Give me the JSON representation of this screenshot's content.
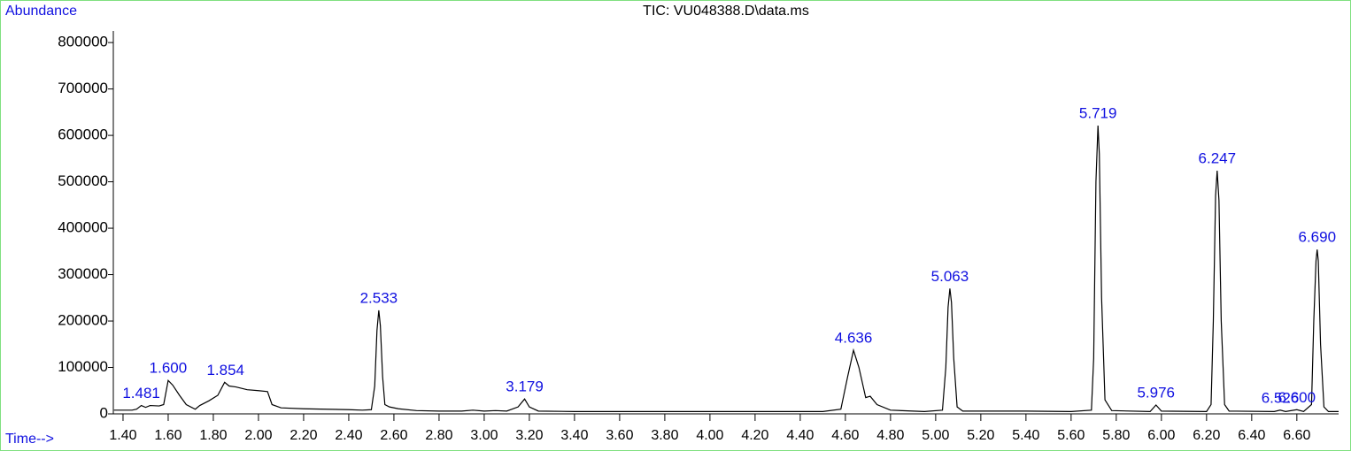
{
  "chart_data": {
    "type": "line",
    "title": "TIC: VU048388.D\\data.ms",
    "y_label": "Abundance",
    "x_label": "Time-->",
    "xlim": [
      1.357,
      6.785
    ],
    "ylim": [
      0,
      825000
    ],
    "xticks": [
      {
        "value": 1.4,
        "label": "1.40"
      },
      {
        "value": 1.6,
        "label": "1.60"
      },
      {
        "value": 1.8,
        "label": "1.80"
      },
      {
        "value": 2.0,
        "label": "2.00"
      },
      {
        "value": 2.2,
        "label": "2.20"
      },
      {
        "value": 2.4,
        "label": "2.40"
      },
      {
        "value": 2.6,
        "label": "2.60"
      },
      {
        "value": 2.8,
        "label": "2.80"
      },
      {
        "value": 3.0,
        "label": "3.00"
      },
      {
        "value": 3.2,
        "label": "3.20"
      },
      {
        "value": 3.4,
        "label": "3.40"
      },
      {
        "value": 3.6,
        "label": "3.60"
      },
      {
        "value": 3.8,
        "label": "3.80"
      },
      {
        "value": 4.0,
        "label": "4.00"
      },
      {
        "value": 4.2,
        "label": "4.20"
      },
      {
        "value": 4.4,
        "label": "4.40"
      },
      {
        "value": 4.6,
        "label": "4.60"
      },
      {
        "value": 4.8,
        "label": "4.80"
      },
      {
        "value": 5.0,
        "label": "5.00"
      },
      {
        "value": 5.2,
        "label": "5.20"
      },
      {
        "value": 5.4,
        "label": "5.40"
      },
      {
        "value": 5.6,
        "label": "5.60"
      },
      {
        "value": 5.8,
        "label": "5.80"
      },
      {
        "value": 6.0,
        "label": "6.00"
      },
      {
        "value": 6.2,
        "label": "6.20"
      },
      {
        "value": 6.4,
        "label": "6.40"
      },
      {
        "value": 6.6,
        "label": "6.60"
      }
    ],
    "yticks": [
      0,
      100000,
      200000,
      300000,
      400000,
      500000,
      600000,
      700000,
      800000
    ],
    "series": [
      {
        "color": "#000000",
        "x": [
          1.36,
          1.44,
          1.46,
          1.481,
          1.5,
          1.52,
          1.56,
          1.58,
          1.6,
          1.62,
          1.65,
          1.68,
          1.72,
          1.74,
          1.78,
          1.82,
          1.85,
          1.87,
          1.9,
          1.95,
          2.0,
          2.04,
          2.06,
          2.1,
          2.2,
          2.3,
          2.4,
          2.46,
          2.5,
          2.515,
          2.525,
          2.533,
          2.54,
          2.55,
          2.56,
          2.58,
          2.62,
          2.7,
          2.8,
          2.9,
          2.95,
          3.0,
          3.05,
          3.1,
          3.15,
          3.179,
          3.2,
          3.24,
          3.4,
          3.8,
          4.2,
          4.5,
          4.58,
          4.61,
          4.636,
          4.66,
          4.69,
          4.71,
          4.74,
          4.8,
          4.95,
          5.03,
          5.045,
          5.055,
          5.063,
          5.07,
          5.08,
          5.095,
          5.12,
          5.4,
          5.6,
          5.69,
          5.7,
          5.71,
          5.719,
          5.725,
          5.735,
          5.75,
          5.78,
          5.95,
          5.976,
          6.0,
          6.2,
          6.22,
          6.23,
          6.24,
          6.247,
          6.255,
          6.265,
          6.28,
          6.3,
          6.5,
          6.526,
          6.55,
          6.6,
          6.63,
          6.665,
          6.675,
          6.685,
          6.69,
          6.695,
          6.705,
          6.72,
          6.74,
          6.785
        ],
        "values": [
          8000,
          8000,
          10000,
          18000,
          14000,
          18000,
          17000,
          20000,
          72000,
          62000,
          40000,
          20000,
          10000,
          18000,
          28000,
          40000,
          68000,
          60000,
          58000,
          52000,
          50000,
          48000,
          20000,
          13000,
          11000,
          10000,
          9000,
          8000,
          9000,
          60000,
          180000,
          223000,
          190000,
          80000,
          20000,
          15000,
          11000,
          7000,
          6000,
          6000,
          8000,
          6000,
          7000,
          6000,
          15000,
          32000,
          15000,
          6000,
          5000,
          5000,
          5000,
          5000,
          10000,
          80000,
          137000,
          100000,
          35000,
          38000,
          20000,
          8000,
          5000,
          8000,
          100000,
          230000,
          270000,
          240000,
          120000,
          15000,
          6000,
          6000,
          5000,
          8000,
          120000,
          500000,
          621000,
          560000,
          250000,
          30000,
          7000,
          5000,
          19000,
          6000,
          5000,
          20000,
          200000,
          470000,
          524000,
          460000,
          200000,
          20000,
          6000,
          5000,
          8000,
          5000,
          9000,
          5000,
          20000,
          200000,
          330000,
          354000,
          330000,
          150000,
          15000,
          5000,
          5000
        ]
      }
    ],
    "annotations": [
      {
        "text": "1.481",
        "x": 1.481,
        "y": 18000
      },
      {
        "text": "1.600",
        "x": 1.6,
        "y": 72000
      },
      {
        "text": "1.854",
        "x": 1.854,
        "y": 68000
      },
      {
        "text": "2.533",
        "x": 2.533,
        "y": 223000
      },
      {
        "text": "3.179",
        "x": 3.179,
        "y": 32000
      },
      {
        "text": "4.636",
        "x": 4.636,
        "y": 137000
      },
      {
        "text": "5.063",
        "x": 5.063,
        "y": 270000
      },
      {
        "text": "5.719",
        "x": 5.719,
        "y": 621000
      },
      {
        "text": "5.976",
        "x": 5.976,
        "y": 19000
      },
      {
        "text": "6.247",
        "x": 6.247,
        "y": 524000
      },
      {
        "text": "6.526",
        "x": 6.526,
        "y": 8000
      },
      {
        "text": "6.600",
        "x": 6.6,
        "y": 9000
      },
      {
        "text": "6.690",
        "x": 6.69,
        "y": 354000
      }
    ],
    "label_color": "#1010e0"
  }
}
